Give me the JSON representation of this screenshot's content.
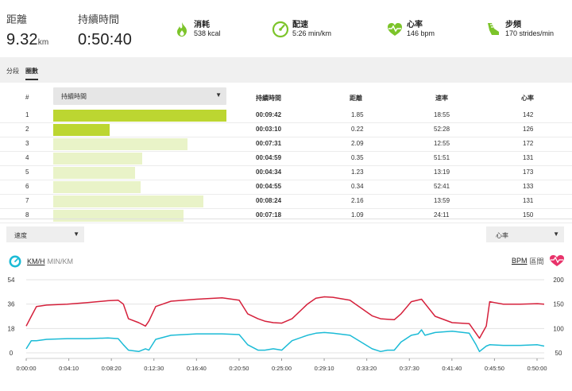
{
  "header": {
    "distance": {
      "label": "距離",
      "value": "9.32",
      "unit": "km"
    },
    "duration": {
      "label": "持續時間",
      "value": "0:50:40"
    },
    "calories": {
      "label": "消耗",
      "value": "538 kcal",
      "icon": "flame-icon",
      "color": "#7cc42a"
    },
    "pace": {
      "label": "配速",
      "value": "5:26 min/km",
      "icon": "speedometer-icon",
      "color": "#7cc42a"
    },
    "heart_rate": {
      "label": "心率",
      "value": "146 bpm",
      "icon": "heart-rate-icon",
      "color": "#7cc42a"
    },
    "cadence": {
      "label": "步頻",
      "value": "170 strides/min",
      "icon": "shoe-icon",
      "color": "#7cc42a"
    }
  },
  "tabs": [
    {
      "label": "分段",
      "active": false
    },
    {
      "label": "圈數",
      "active": true
    }
  ],
  "laps": {
    "columns": {
      "index": "#",
      "metric_select": "持續時間",
      "duration": "持續時間",
      "distance": "距離",
      "speed": "速率",
      "hr": "心率"
    },
    "rows": [
      {
        "index": "1",
        "duration": "00:09:42",
        "distance": "1.85",
        "speed": "18:55",
        "hr": "142",
        "seconds": 582,
        "highlight": true
      },
      {
        "index": "2",
        "duration": "00:03:10",
        "distance": "0.22",
        "speed": "52:28",
        "hr": "126",
        "seconds": 190,
        "highlight": true
      },
      {
        "index": "3",
        "duration": "00:07:31",
        "distance": "2.09",
        "speed": "12:55",
        "hr": "172",
        "seconds": 451,
        "highlight": false
      },
      {
        "index": "4",
        "duration": "00:04:59",
        "distance": "0.35",
        "speed": "51:51",
        "hr": "131",
        "seconds": 299,
        "highlight": false
      },
      {
        "index": "5",
        "duration": "00:04:34",
        "distance": "1.23",
        "speed": "13:19",
        "hr": "173",
        "seconds": 274,
        "highlight": false
      },
      {
        "index": "6",
        "duration": "00:04:55",
        "distance": "0.34",
        "speed": "52:41",
        "hr": "133",
        "seconds": 295,
        "highlight": false
      },
      {
        "index": "7",
        "duration": "00:08:24",
        "distance": "2.16",
        "speed": "13:59",
        "hr": "131",
        "seconds": 504,
        "highlight": false
      },
      {
        "index": "8",
        "duration": "00:07:18",
        "distance": "1.09",
        "speed": "24:11",
        "hr": "150",
        "seconds": 438,
        "highlight": false
      }
    ],
    "bar_strong_color": "#bcd631",
    "bar_light_color": "#e9f3c8"
  },
  "selectors": {
    "left": "速度",
    "right": "心率"
  },
  "legend": {
    "left_unit": "KM/H",
    "left_alt": "MIN/KM",
    "right_unit": "BPM",
    "right_alt": "區間"
  },
  "chart_data": {
    "type": "line",
    "x_unit": "seconds",
    "xlim": [
      0,
      3040
    ],
    "x_ticks": [
      "0:00:00",
      "0:04:10",
      "0:08:20",
      "0:12:30",
      "0:16:40",
      "0:20:50",
      "0:25:00",
      "0:29:10",
      "0:33:20",
      "0:37:30",
      "0:41:40",
      "0:45:50",
      "0:50:00"
    ],
    "left_axis": {
      "ticks": [
        "54",
        "36",
        "18",
        "0"
      ],
      "ylim": [
        0,
        54
      ]
    },
    "right_axis": {
      "ticks": [
        "200",
        "150",
        "100",
        "50"
      ],
      "ylim": [
        50,
        200
      ]
    },
    "series": [
      {
        "name": "心率",
        "axis": "right",
        "color": "#d5203b",
        "x": [
          0,
          30,
          60,
          120,
          240,
          360,
          480,
          540,
          570,
          600,
          660,
          700,
          720,
          760,
          850,
          1000,
          1150,
          1250,
          1300,
          1360,
          1400,
          1450,
          1500,
          1560,
          1650,
          1700,
          1750,
          1800,
          1900,
          2030,
          2080,
          2120,
          2160,
          2200,
          2260,
          2320,
          2400,
          2500,
          2600,
          2660,
          2700,
          2720,
          2750,
          2800,
          2900,
          3000,
          3040
        ],
        "values": [
          105,
          125,
          145,
          148,
          150,
          153,
          157,
          158,
          150,
          120,
          112,
          105,
          115,
          145,
          156,
          160,
          163,
          158,
          130,
          120,
          115,
          112,
          111,
          120,
          150,
          162,
          165,
          164,
          158,
          126,
          120,
          119,
          118,
          130,
          155,
          160,
          125,
          112,
          110,
          80,
          105,
          155,
          153,
          150,
          150,
          151,
          150
        ]
      },
      {
        "name": "速度",
        "axis": "left",
        "color": "#1bbbd6",
        "x": [
          0,
          30,
          60,
          120,
          240,
          360,
          480,
          540,
          570,
          600,
          660,
          700,
          720,
          760,
          850,
          1000,
          1150,
          1250,
          1300,
          1360,
          1400,
          1450,
          1500,
          1560,
          1650,
          1700,
          1750,
          1800,
          1900,
          2030,
          2080,
          2120,
          2160,
          2200,
          2260,
          2300,
          2320,
          2340,
          2400,
          2500,
          2600,
          2640,
          2660,
          2700,
          2720,
          2800,
          2900,
          3000,
          3040
        ],
        "values": [
          3,
          9,
          9,
          10,
          10.5,
          10.5,
          11,
          10.5,
          6,
          2,
          1,
          3,
          2,
          10,
          13,
          14,
          14,
          13.5,
          6,
          2,
          2,
          3,
          2,
          9,
          13,
          14.5,
          15,
          14.5,
          13,
          3,
          1,
          2,
          2,
          8,
          13,
          14,
          17,
          13,
          15,
          16,
          14.5,
          6,
          1,
          5,
          6,
          5.5,
          5.5,
          6,
          5
        ]
      }
    ]
  }
}
